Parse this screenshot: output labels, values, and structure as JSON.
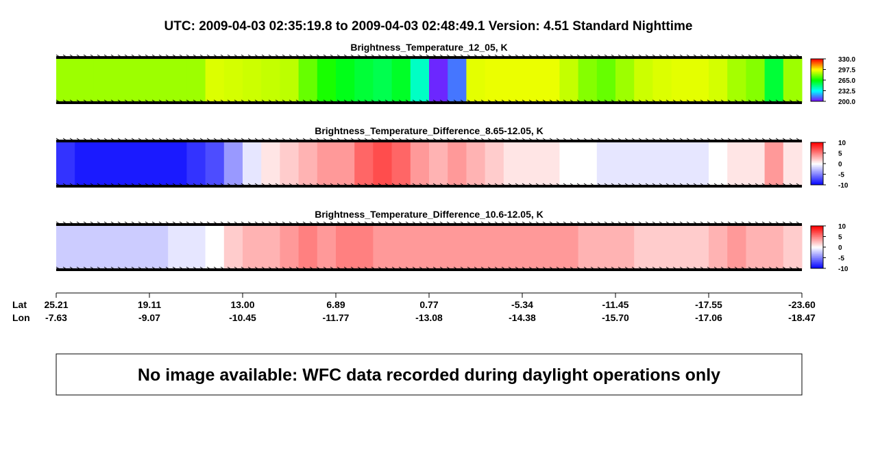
{
  "title": "UTC:  2009-04-03   02:35:19.8  to  2009-04-03   02:48:49.1    Version: 4.51  Standard Nighttime",
  "chart_data": [
    {
      "type": "heatmap",
      "title": "Brightness_Temperature_12_05, K",
      "colors": [
        "#8000ff",
        "#00ffff",
        "#00ff00",
        "#ffff00",
        "#ff0000"
      ],
      "clim": [
        200,
        330
      ],
      "cticks": [
        {
          "value": 200,
          "label": "200.0"
        },
        {
          "value": 232.5,
          "label": "232.5"
        },
        {
          "value": 265,
          "label": "265.0"
        },
        {
          "value": 297.5,
          "label": "297.5"
        },
        {
          "value": 330,
          "label": "330.0"
        }
      ],
      "values": [
        285,
        285,
        285,
        285,
        285,
        285,
        285,
        285,
        293,
        292,
        291,
        290,
        289,
        278,
        268,
        262,
        258,
        255,
        260,
        240,
        205,
        215,
        294,
        295,
        295,
        295,
        295,
        290,
        282,
        278,
        285,
        291,
        293,
        294,
        294,
        292,
        286,
        282,
        258,
        285
      ]
    },
    {
      "type": "heatmap",
      "title": "Brightness_Temperature_Difference_8.65-12.05, K",
      "colors": [
        "#0000ff",
        "#ffffff",
        "#ff0000"
      ],
      "clim": [
        -10,
        10
      ],
      "cticks": [
        -10,
        -5,
        0,
        5,
        10
      ],
      "values": [
        -8,
        -9,
        -9,
        -9,
        -9,
        -9,
        -9,
        -8,
        -7,
        -4,
        -1,
        1,
        2,
        3,
        4,
        4,
        6,
        7,
        6,
        4,
        3,
        4,
        3,
        2,
        1,
        1,
        1,
        0,
        0,
        -1,
        -1,
        -1,
        -1,
        -1,
        -1,
        0,
        1,
        1,
        4,
        1
      ]
    },
    {
      "type": "heatmap",
      "title": "Brightness_Temperature_Difference_10.6-12.05, K",
      "colors": [
        "#0000ff",
        "#ffffff",
        "#ff0000"
      ],
      "clim": [
        -10,
        10
      ],
      "cticks": [
        -10,
        -5,
        0,
        5,
        10
      ],
      "values": [
        -2,
        -2,
        -2,
        -2,
        -2,
        -2,
        -1,
        -1,
        0,
        2,
        3,
        3,
        4,
        5,
        4,
        5,
        5,
        4,
        4,
        4,
        4,
        4,
        4,
        4,
        4,
        4,
        4,
        4,
        3,
        3,
        3,
        2,
        2,
        2,
        2,
        3,
        4,
        3,
        3,
        2
      ]
    }
  ],
  "axis": {
    "lat_label": "Lat",
    "lon_label": "Lon",
    "lat": [
      25.21,
      19.11,
      {
        "value": 13,
        "label": "13.00"
      },
      6.89,
      0.77,
      -5.34,
      -11.45,
      -17.55,
      {
        "value": -23.6,
        "label": "-23.60"
      }
    ],
    "lon": [
      -7.63,
      -9.07,
      -10.45,
      -11.77,
      -13.08,
      -14.38,
      {
        "value": -15.7,
        "label": "-15.70"
      },
      -17.06,
      -18.47
    ]
  },
  "message": "No image available: WFC data recorded during daylight operations only"
}
